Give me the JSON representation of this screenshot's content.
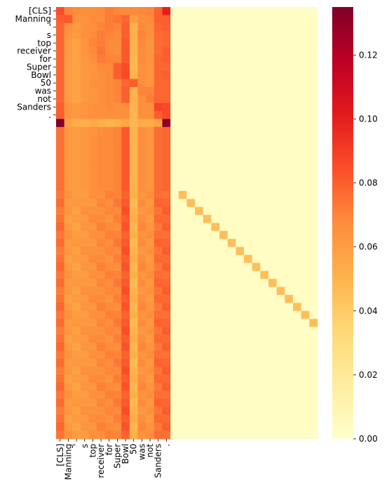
{
  "chart_data": {
    "type": "heatmap",
    "title": "",
    "xlabel": "",
    "ylabel": "",
    "colormap": "YlOrRd",
    "colorbar": {
      "vmin": 0.0,
      "vmax": 0.135,
      "ticks": [
        0.0,
        0.02,
        0.04,
        0.06,
        0.08,
        0.1,
        0.12
      ],
      "tick_labels": [
        "0.00",
        "0.02",
        "0.04",
        "0.06",
        "0.08",
        "0.10",
        "0.12"
      ]
    },
    "n_rows": 54,
    "n_cols": 32,
    "x_tick_labels": [
      "[CLS]",
      "Manning",
      "'",
      "s",
      "top",
      "receiver",
      "for",
      "Super",
      "Bowl",
      "50",
      "was",
      "not",
      "Sanders",
      ".",
      "",
      "",
      "",
      "",
      "",
      "",
      "",
      "",
      "",
      "",
      "",
      "",
      "",
      "",
      "",
      "",
      "",
      ""
    ],
    "y_tick_labels": [
      "[CLS]",
      "Manning",
      "'",
      "s",
      "top",
      "receiver",
      "for",
      "Super",
      "Bowl",
      "50",
      "was",
      "not",
      "Sanders",
      ".",
      "",
      "",
      "",
      "",
      "",
      "",
      "",
      "",
      "",
      "",
      "",
      "",
      "",
      "",
      "",
      "",
      "",
      "",
      "",
      "",
      "",
      "",
      "",
      "",
      "",
      "",
      "",
      "",
      "",
      "",
      "",
      "",
      "",
      "",
      "",
      "",
      "",
      "",
      "",
      ""
    ],
    "question_rows": {
      "start": 0,
      "end": 23,
      "cols": 14,
      "values": [
        [
          0.085,
          0.07,
          0.068,
          0.066,
          0.067,
          0.068,
          0.072,
          0.069,
          0.068,
          0.068,
          0.069,
          0.07,
          0.079,
          0.1
        ],
        [
          0.08,
          0.082,
          0.065,
          0.065,
          0.068,
          0.067,
          0.072,
          0.074,
          0.078,
          0.06,
          0.067,
          0.068,
          0.08,
          0.08
        ],
        [
          0.078,
          0.066,
          0.062,
          0.065,
          0.066,
          0.07,
          0.072,
          0.07,
          0.08,
          0.05,
          0.068,
          0.066,
          0.078,
          0.08
        ],
        [
          0.078,
          0.064,
          0.06,
          0.066,
          0.068,
          0.072,
          0.07,
          0.068,
          0.08,
          0.052,
          0.07,
          0.065,
          0.077,
          0.078
        ],
        [
          0.078,
          0.062,
          0.058,
          0.064,
          0.07,
          0.072,
          0.068,
          0.068,
          0.082,
          0.05,
          0.068,
          0.064,
          0.076,
          0.078
        ],
        [
          0.078,
          0.061,
          0.058,
          0.064,
          0.068,
          0.074,
          0.068,
          0.067,
          0.082,
          0.05,
          0.067,
          0.064,
          0.076,
          0.08
        ],
        [
          0.078,
          0.06,
          0.058,
          0.063,
          0.066,
          0.072,
          0.07,
          0.07,
          0.082,
          0.048,
          0.068,
          0.064,
          0.078,
          0.08
        ],
        [
          0.078,
          0.06,
          0.058,
          0.062,
          0.064,
          0.068,
          0.068,
          0.08,
          0.085,
          0.048,
          0.066,
          0.064,
          0.078,
          0.078
        ],
        [
          0.078,
          0.06,
          0.058,
          0.062,
          0.064,
          0.066,
          0.068,
          0.08,
          0.086,
          0.05,
          0.066,
          0.064,
          0.078,
          0.08
        ],
        [
          0.078,
          0.06,
          0.058,
          0.062,
          0.065,
          0.066,
          0.068,
          0.07,
          0.078,
          0.08,
          0.066,
          0.064,
          0.078,
          0.078
        ],
        [
          0.078,
          0.06,
          0.058,
          0.062,
          0.064,
          0.066,
          0.068,
          0.07,
          0.08,
          0.05,
          0.07,
          0.07,
          0.078,
          0.078
        ],
        [
          0.078,
          0.06,
          0.058,
          0.062,
          0.064,
          0.066,
          0.068,
          0.07,
          0.08,
          0.05,
          0.066,
          0.072,
          0.078,
          0.078
        ],
        [
          0.08,
          0.064,
          0.062,
          0.064,
          0.066,
          0.066,
          0.068,
          0.066,
          0.066,
          0.05,
          0.066,
          0.065,
          0.088,
          0.086
        ],
        [
          0.08,
          0.064,
          0.062,
          0.064,
          0.066,
          0.066,
          0.066,
          0.066,
          0.066,
          0.05,
          0.066,
          0.066,
          0.08,
          0.086
        ],
        [
          0.135,
          0.058,
          0.054,
          0.052,
          0.055,
          0.052,
          0.05,
          0.052,
          0.056,
          0.048,
          0.054,
          0.054,
          0.058,
          0.132
        ],
        [
          0.075,
          0.062,
          0.06,
          0.063,
          0.064,
          0.067,
          0.068,
          0.07,
          0.082,
          0.05,
          0.066,
          0.064,
          0.076,
          0.078
        ],
        [
          0.075,
          0.062,
          0.06,
          0.063,
          0.065,
          0.068,
          0.068,
          0.07,
          0.082,
          0.05,
          0.066,
          0.064,
          0.076,
          0.078
        ],
        [
          0.075,
          0.062,
          0.06,
          0.063,
          0.065,
          0.068,
          0.068,
          0.07,
          0.082,
          0.05,
          0.066,
          0.064,
          0.076,
          0.078
        ],
        [
          0.075,
          0.062,
          0.06,
          0.063,
          0.065,
          0.068,
          0.068,
          0.07,
          0.082,
          0.05,
          0.066,
          0.064,
          0.076,
          0.078
        ],
        [
          0.075,
          0.062,
          0.06,
          0.063,
          0.066,
          0.068,
          0.068,
          0.07,
          0.082,
          0.05,
          0.066,
          0.064,
          0.076,
          0.078
        ],
        [
          0.075,
          0.062,
          0.06,
          0.063,
          0.065,
          0.068,
          0.068,
          0.07,
          0.082,
          0.05,
          0.066,
          0.064,
          0.076,
          0.078
        ],
        [
          0.075,
          0.062,
          0.06,
          0.063,
          0.065,
          0.068,
          0.068,
          0.07,
          0.082,
          0.05,
          0.066,
          0.064,
          0.076,
          0.078
        ],
        [
          0.075,
          0.062,
          0.06,
          0.063,
          0.065,
          0.068,
          0.068,
          0.07,
          0.082,
          0.05,
          0.066,
          0.064,
          0.076,
          0.078
        ]
      ]
    },
    "padding_rows": {
      "start": 23,
      "end": 54,
      "cols": 14,
      "base_values": [
        0.075,
        0.062,
        0.06,
        0.063,
        0.065,
        0.068,
        0.068,
        0.07,
        0.082,
        0.05,
        0.066,
        0.064,
        0.076,
        0.078
      ],
      "background_value": 0.003,
      "diagonal_value": 0.045,
      "diagonal_start_col": 15
    }
  }
}
